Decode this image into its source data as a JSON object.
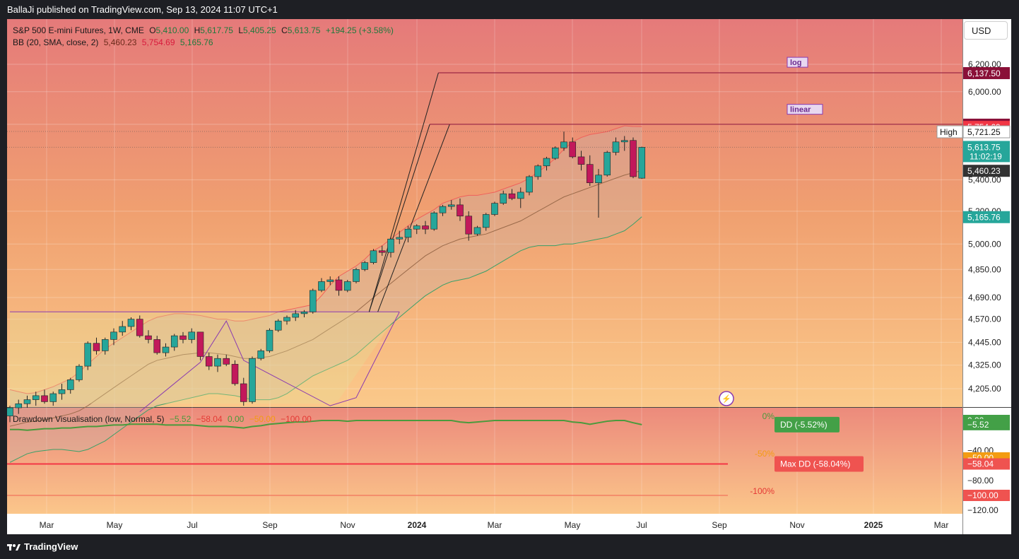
{
  "header": {
    "published_text": "BallaJi published on TradingView.com, Sep 13, 2024 11:07 UTC+1"
  },
  "legend_main": {
    "symbol": "S&P 500 E-mini Futures, 1W, CME",
    "o_label": "O",
    "o_value": "5,410.00",
    "h_label": "H",
    "h_value": "5,617.75",
    "l_label": "L",
    "l_value": "5,405.25",
    "c_label": "C",
    "c_value": "5,613.75",
    "change": "+194.25 (+3.58%)"
  },
  "legend_bb": {
    "label": "BB (20, SMA, close, 2)",
    "basis": "5,460.23",
    "upper": "5,754.69",
    "lower": "5,165.76"
  },
  "legend_dd": {
    "label": "Drawdown Visualisation (low, Normal, 5)",
    "v1": "−5.52",
    "v2": "−58.04",
    "v3": "0.00",
    "v4": "−50.00",
    "v5": "−100.00"
  },
  "currency_button": "USD",
  "colors": {
    "up": "#26a69a",
    "down": "#c2185b",
    "bb_upper": "#f23645",
    "bb_lower": "#2e9e5f",
    "dd_line": "#4a9a3c",
    "maxdd": "#f23645"
  },
  "chart_data": [
    {
      "type": "candlestick",
      "title": "S&P 500 E-mini Futures, 1W, CME",
      "price_axis_ticks": [
        "6,200.00",
        "6,000.00",
        "5,770.25",
        "5,400.00",
        "5,200.00",
        "5,000.00",
        "4,850.00",
        "4,690.00",
        "4,570.00",
        "4,445.00",
        "4,325.00",
        "4,205.00"
      ],
      "time_axis_labels": [
        "Mar",
        "May",
        "Jul",
        "Sep",
        "Nov",
        "2024",
        "Mar",
        "May",
        "Jul",
        "Sep",
        "Nov",
        "2025",
        "Mar"
      ],
      "price_labels": [
        {
          "text": "6,137.50",
          "color": "#8a1038"
        },
        {
          "text": "5,770.25",
          "color": "#8a1038"
        },
        {
          "text": "5,754.69",
          "color": "#f23645"
        },
        {
          "text": "5,721.25",
          "color": "#ffffff",
          "tag": "High"
        },
        {
          "text": "5,613.75",
          "sub": "11:02:19",
          "color": "#26a69a"
        },
        {
          "text": "5,460.23",
          "color": "#333333"
        },
        {
          "text": "5,165.76",
          "color": "#26a69a"
        }
      ],
      "annotations": [
        "log",
        "linear"
      ],
      "candles_ohlc": [
        [
          4070,
          4120,
          4040,
          4110
        ],
        [
          4110,
          4150,
          4080,
          4130
        ],
        [
          4130,
          4170,
          4110,
          4150
        ],
        [
          4150,
          4190,
          4120,
          4170
        ],
        [
          4170,
          4200,
          4130,
          4140
        ],
        [
          4140,
          4190,
          4120,
          4180
        ],
        [
          4180,
          4230,
          4150,
          4200
        ],
        [
          4200,
          4260,
          4180,
          4250
        ],
        [
          4250,
          4330,
          4240,
          4320
        ],
        [
          4320,
          4450,
          4300,
          4440
        ],
        [
          4440,
          4470,
          4380,
          4400
        ],
        [
          4400,
          4470,
          4380,
          4460
        ],
        [
          4460,
          4520,
          4430,
          4500
        ],
        [
          4500,
          4560,
          4480,
          4530
        ],
        [
          4530,
          4580,
          4510,
          4570
        ],
        [
          4570,
          4590,
          4470,
          4480
        ],
        [
          4480,
          4510,
          4440,
          4460
        ],
        [
          4460,
          4480,
          4380,
          4390
        ],
        [
          4390,
          4440,
          4370,
          4420
        ],
        [
          4420,
          4490,
          4400,
          4480
        ],
        [
          4480,
          4500,
          4440,
          4460
        ],
        [
          4460,
          4520,
          4440,
          4500
        ],
        [
          4500,
          4500,
          4350,
          4370
        ],
        [
          4370,
          4390,
          4300,
          4320
        ],
        [
          4320,
          4380,
          4290,
          4360
        ],
        [
          4360,
          4380,
          4320,
          4330
        ],
        [
          4330,
          4350,
          4220,
          4230
        ],
        [
          4230,
          4260,
          4120,
          4140
        ],
        [
          4140,
          4370,
          4130,
          4360
        ],
        [
          4360,
          4410,
          4350,
          4400
        ],
        [
          4400,
          4520,
          4390,
          4510
        ],
        [
          4510,
          4570,
          4500,
          4560
        ],
        [
          4560,
          4590,
          4540,
          4580
        ],
        [
          4580,
          4620,
          4560,
          4600
        ],
        [
          4600,
          4620,
          4580,
          4610
        ],
        [
          4610,
          4740,
          4600,
          4730
        ],
        [
          4730,
          4800,
          4720,
          4780
        ],
        [
          4780,
          4810,
          4760,
          4790
        ],
        [
          4790,
          4810,
          4700,
          4730
        ],
        [
          4730,
          4790,
          4720,
          4780
        ],
        [
          4780,
          4860,
          4770,
          4850
        ],
        [
          4850,
          4900,
          4840,
          4890
        ],
        [
          4890,
          4970,
          4880,
          4960
        ],
        [
          4960,
          4990,
          4930,
          4950
        ],
        [
          4950,
          5040,
          4920,
          5030
        ],
        [
          5030,
          5080,
          5000,
          5040
        ],
        [
          5040,
          5110,
          5010,
          5090
        ],
        [
          5090,
          5120,
          5060,
          5110
        ],
        [
          5110,
          5140,
          5060,
          5090
        ],
        [
          5090,
          5200,
          5080,
          5190
        ],
        [
          5190,
          5240,
          5170,
          5230
        ],
        [
          5230,
          5270,
          5210,
          5240
        ],
        [
          5240,
          5280,
          5140,
          5170
        ],
        [
          5170,
          5200,
          5020,
          5060
        ],
        [
          5060,
          5110,
          5050,
          5100
        ],
        [
          5100,
          5190,
          5080,
          5180
        ],
        [
          5180,
          5260,
          5170,
          5250
        ],
        [
          5250,
          5330,
          5240,
          5310
        ],
        [
          5310,
          5340,
          5270,
          5280
        ],
        [
          5280,
          5350,
          5220,
          5320
        ],
        [
          5320,
          5430,
          5300,
          5420
        ],
        [
          5420,
          5500,
          5400,
          5490
        ],
        [
          5490,
          5550,
          5460,
          5540
        ],
        [
          5540,
          5620,
          5530,
          5610
        ],
        [
          5610,
          5720,
          5590,
          5650
        ],
        [
          5650,
          5680,
          5540,
          5550
        ],
        [
          5550,
          5590,
          5460,
          5500
        ],
        [
          5500,
          5560,
          5360,
          5380
        ],
        [
          5380,
          5470,
          5160,
          5430
        ],
        [
          5430,
          5590,
          5420,
          5580
        ],
        [
          5580,
          5680,
          5560,
          5650
        ],
        [
          5650,
          5690,
          5590,
          5660
        ],
        [
          5660,
          5680,
          5410,
          5420
        ],
        [
          5410,
          5617.75,
          5405.25,
          5613.75
        ]
      ],
      "series": [
        {
          "name": "BB upper",
          "values": [
            4200,
            4190,
            4180,
            4185,
            4200,
            4215,
            4235,
            4255,
            4290,
            4330,
            4370,
            4410,
            4440,
            4470,
            4500,
            4530,
            4560,
            4580,
            4590,
            4600,
            4600,
            4595,
            4590,
            4580,
            4570,
            4570,
            4560,
            4560,
            4570,
            4580,
            4590,
            4610,
            4620,
            4630,
            4640,
            4650,
            4700,
            4760,
            4810,
            4840,
            4870,
            4910,
            4960,
            4990,
            5030,
            5070,
            5110,
            5150,
            5180,
            5210,
            5250,
            5270,
            5290,
            5300,
            5300,
            5310,
            5320,
            5340,
            5360,
            5380,
            5410,
            5450,
            5490,
            5540,
            5600,
            5650,
            5680,
            5700,
            5710,
            5720,
            5740,
            5760,
            5755,
            5754.69
          ]
        },
        {
          "name": "BB basis",
          "values": [
            4020,
            4030,
            4040,
            4045,
            4050,
            4060,
            4070,
            4080,
            4095,
            4120,
            4150,
            4180,
            4210,
            4240,
            4270,
            4300,
            4330,
            4350,
            4360,
            4370,
            4380,
            4385,
            4390,
            4390,
            4385,
            4380,
            4370,
            4360,
            4360,
            4365,
            4370,
            4385,
            4400,
            4420,
            4440,
            4460,
            4490,
            4520,
            4550,
            4580,
            4610,
            4650,
            4690,
            4730,
            4770,
            4810,
            4850,
            4890,
            4930,
            4960,
            4990,
            5010,
            5030,
            5040,
            5050,
            5060,
            5080,
            5100,
            5120,
            5140,
            5170,
            5200,
            5230,
            5260,
            5290,
            5310,
            5330,
            5350,
            5370,
            5390,
            5410,
            5430,
            5445,
            5460.23
          ]
        },
        {
          "name": "BB lower",
          "values": [
            3850,
            3870,
            3890,
            3900,
            3905,
            3910,
            3910,
            3905,
            3900,
            3910,
            3930,
            3950,
            3980,
            4010,
            4040,
            4070,
            4100,
            4120,
            4130,
            4140,
            4150,
            4160,
            4170,
            4180,
            4180,
            4175,
            4170,
            4160,
            4150,
            4150,
            4150,
            4160,
            4180,
            4210,
            4240,
            4270,
            4290,
            4310,
            4330,
            4350,
            4380,
            4420,
            4460,
            4500,
            4540,
            4580,
            4620,
            4660,
            4700,
            4730,
            4760,
            4780,
            4790,
            4800,
            4820,
            4840,
            4870,
            4900,
            4930,
            4960,
            4980,
            4990,
            4990,
            4990,
            5000,
            5000,
            5010,
            5020,
            5030,
            5040,
            5060,
            5080,
            5120,
            5165.76
          ]
        },
        {
          "name": "DD",
          "values": [
            -12,
            -12,
            -13,
            -12,
            -11,
            -11,
            -10,
            -10,
            -9,
            -8,
            -8,
            -7,
            -6,
            -6,
            -5,
            -5,
            -5,
            -5,
            -6,
            -6,
            -6,
            -6,
            -7,
            -8,
            -8,
            -8,
            -9,
            -10,
            -8,
            -7,
            -5,
            -4,
            -3,
            -2,
            -2,
            -1,
            0,
            0,
            0,
            -1,
            0,
            0,
            0,
            0,
            0,
            0,
            0,
            0,
            0,
            0,
            0,
            0,
            -2,
            -3,
            -2,
            -1,
            0,
            0,
            0,
            0,
            0,
            0,
            0,
            0,
            0,
            -2,
            -3,
            -5,
            -3,
            -1,
            0,
            0,
            -3,
            -5.52
          ]
        }
      ],
      "dd_pane": {
        "ticks": [
          "0.00",
          "−5.52",
          "−40.00",
          "−50.00",
          "−58.04",
          "−80.00",
          "−100.00",
          "−120.00"
        ],
        "levels": [
          "0%",
          "-50%",
          "-100%"
        ],
        "dd_tag": "DD (-5.52%)",
        "maxdd_tag": "Max DD (-58.04%)"
      }
    }
  ],
  "footer": {
    "brand": "TradingView"
  }
}
